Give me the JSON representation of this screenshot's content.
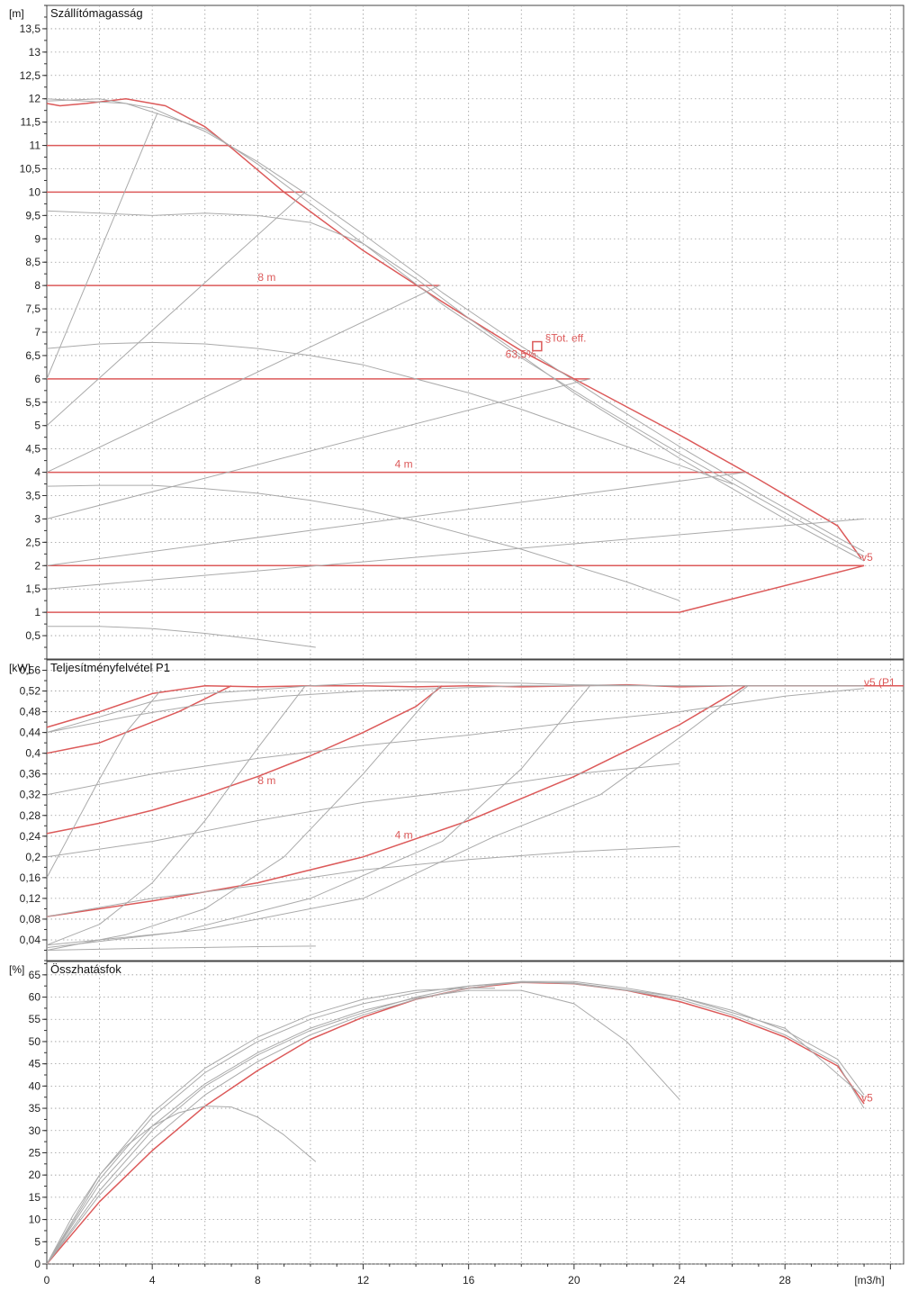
{
  "chart_data": [
    {
      "type": "line",
      "title": "Szállítómagasság",
      "unit": "[m]",
      "xlabel": "[m3/h]",
      "xlim": [
        0,
        32.5
      ],
      "ylim": [
        0,
        14
      ],
      "x_ticks": [
        0,
        4,
        8,
        12,
        16,
        20,
        24,
        28
      ],
      "y_ticks": [
        "0,5",
        "1",
        "1,5",
        "2",
        "2,5",
        "3",
        "3,5",
        "4",
        "4,5",
        "5",
        "5,5",
        "6",
        "6,5",
        "7",
        "7,5",
        "8",
        "8,5",
        "9",
        "9,5",
        "10",
        "10,5",
        "11",
        "11,5",
        "12",
        "12,5",
        "13",
        "13,5"
      ],
      "grid": true,
      "series": [
        {
          "name": "v5",
          "color": "#dc5a5a",
          "x": [
            0,
            0.5,
            1.5,
            3,
            4.5,
            6,
            7,
            9,
            12,
            15,
            18,
            21,
            24,
            27,
            30,
            30.9
          ],
          "y": [
            11.9,
            11.85,
            11.9,
            12,
            11.85,
            11.4,
            10.95,
            10.0,
            8.75,
            7.65,
            6.6,
            5.7,
            4.8,
            3.85,
            2.85,
            2.15
          ]
        },
        {
          "name": "",
          "color": "#dc5a5a",
          "x": [
            0,
            7
          ],
          "y": [
            11,
            11
          ]
        },
        {
          "name": "",
          "color": "#dc5a5a",
          "x": [
            0,
            9.8
          ],
          "y": [
            10,
            10
          ]
        },
        {
          "name": "",
          "color": "#dc5a5a",
          "x": [
            0,
            14.9
          ],
          "y": [
            8,
            8
          ]
        },
        {
          "name": "",
          "color": "#dc5a5a",
          "x": [
            0,
            20.6
          ],
          "y": [
            6,
            6
          ]
        },
        {
          "name": "",
          "color": "#dc5a5a",
          "x": [
            0,
            26.5
          ],
          "y": [
            4,
            4
          ]
        },
        {
          "name": "",
          "color": "#dc5a5a",
          "x": [
            0,
            31
          ],
          "y": [
            2,
            2
          ]
        },
        {
          "name": "",
          "color": "#dc5a5a",
          "x": [
            0,
            24,
            31
          ],
          "y": [
            1,
            1,
            2
          ]
        },
        {
          "name": "",
          "color": "#aaaaaa",
          "x": [
            0,
            2,
            4,
            6,
            8,
            10,
            12,
            15,
            18,
            21,
            24,
            27,
            30,
            31
          ],
          "y": [
            11.95,
            12,
            11.8,
            11.3,
            10.65,
            9.9,
            9.1,
            7.85,
            6.7,
            5.6,
            4.55,
            3.55,
            2.6,
            2.3
          ]
        },
        {
          "name": "",
          "color": "#aaaaaa",
          "x": [
            0,
            3,
            6,
            8,
            10,
            12,
            15,
            18,
            21,
            24,
            27,
            30,
            31
          ],
          "y": [
            12.0,
            11.9,
            11.35,
            10.6,
            9.75,
            8.9,
            7.6,
            6.45,
            5.4,
            4.4,
            3.45,
            2.5,
            2.2
          ]
        },
        {
          "name": "",
          "color": "#aaaaaa",
          "x": [
            0,
            2,
            4,
            6,
            8,
            10,
            12,
            14,
            16,
            18,
            20,
            22,
            24,
            26,
            28,
            30,
            31
          ],
          "y": [
            9.6,
            9.55,
            9.5,
            9.55,
            9.5,
            9.35,
            8.9,
            8.15,
            7.3,
            6.5,
            5.7,
            5.0,
            4.3,
            3.65,
            3.0,
            2.4,
            2.1
          ]
        },
        {
          "name": "",
          "color": "#aaaaaa",
          "x": [
            0,
            2,
            4,
            6,
            8,
            10,
            12,
            14,
            16,
            18,
            20,
            22,
            24,
            26
          ],
          "y": [
            6.65,
            6.75,
            6.78,
            6.75,
            6.65,
            6.5,
            6.3,
            6.0,
            5.7,
            5.35,
            4.95,
            4.55,
            4.15,
            3.75
          ]
        },
        {
          "name": "",
          "color": "#aaaaaa",
          "x": [
            0,
            2,
            4,
            6,
            8,
            10,
            12,
            14,
            16,
            18,
            20,
            22,
            24
          ],
          "y": [
            3.7,
            3.72,
            3.72,
            3.65,
            3.55,
            3.4,
            3.2,
            2.95,
            2.65,
            2.35,
            2.0,
            1.65,
            1.25
          ]
        },
        {
          "name": "",
          "color": "#aaaaaa",
          "x": [
            0,
            2,
            4,
            6,
            8,
            10.2
          ],
          "y": [
            0.7,
            0.7,
            0.65,
            0.55,
            0.42,
            0.25
          ]
        },
        {
          "name": "",
          "color": "#aaaaaa",
          "x": [
            0,
            4.2
          ],
          "y": [
            6,
            11.7
          ]
        },
        {
          "name": "",
          "color": "#aaaaaa",
          "x": [
            0,
            9.8
          ],
          "y": [
            5,
            10
          ]
        },
        {
          "name": "",
          "color": "#aaaaaa",
          "x": [
            0,
            14.9
          ],
          "y": [
            4,
            8
          ]
        },
        {
          "name": "",
          "color": "#aaaaaa",
          "x": [
            0,
            20.6
          ],
          "y": [
            3,
            6
          ]
        },
        {
          "name": "",
          "color": "#aaaaaa",
          "x": [
            0,
            26.5
          ],
          "y": [
            2,
            4
          ]
        },
        {
          "name": "",
          "color": "#aaaaaa",
          "x": [
            0,
            31
          ],
          "y": [
            1.5,
            3
          ]
        }
      ],
      "annotations": [
        {
          "text": "8 m",
          "x": 8.0,
          "y": 8.1
        },
        {
          "text": "4 m",
          "x": 13.2,
          "y": 4.1
        },
        {
          "text": "§Tot. eff.",
          "x": 18.9,
          "y": 6.8
        },
        {
          "text": "63,5%",
          "x": 17.4,
          "y": 6.45
        },
        {
          "text": "v5",
          "x": 30.9,
          "y": 2.1
        }
      ],
      "marker": {
        "x": 18.6,
        "y": 6.7
      }
    },
    {
      "type": "line",
      "title": "Teljesítményfelvétel P1",
      "unit": "[kW]",
      "xlim": [
        0,
        32.5
      ],
      "ylim": [
        0,
        0.58
      ],
      "y_ticks": [
        "0,04",
        "0,08",
        "0,12",
        "0,16",
        "0,2",
        "0,24",
        "0,28",
        "0,32",
        "0,36",
        "0,4",
        "0,44",
        "0,48",
        "0,52",
        "0,56"
      ],
      "grid": true,
      "series": [
        {
          "name": "v5 (P1",
          "color": "#dc5a5a",
          "x": [
            0,
            2,
            4,
            6,
            8,
            10,
            12,
            14,
            16,
            18,
            20,
            22,
            24,
            26,
            28,
            30,
            32.5
          ],
          "y": [
            0.45,
            0.48,
            0.515,
            0.53,
            0.528,
            0.53,
            0.53,
            0.528,
            0.53,
            0.528,
            0.53,
            0.532,
            0.528,
            0.53,
            0.53,
            0.53,
            0.53
          ]
        },
        {
          "name": "",
          "color": "#dc5a5a",
          "x": [
            0,
            1,
            2,
            3,
            4,
            5,
            6,
            7
          ],
          "y": [
            0.4,
            0.41,
            0.42,
            0.44,
            0.46,
            0.48,
            0.505,
            0.53
          ]
        },
        {
          "name": "",
          "color": "#dc5a5a",
          "x": [
            0,
            2,
            4,
            6,
            8,
            10,
            12,
            14,
            15
          ],
          "y": [
            0.245,
            0.265,
            0.29,
            0.32,
            0.355,
            0.395,
            0.44,
            0.49,
            0.53
          ]
        },
        {
          "name": "",
          "color": "#dc5a5a",
          "x": [
            0,
            4,
            8,
            12,
            16,
            20,
            22,
            24,
            26.5
          ],
          "y": [
            0.085,
            0.115,
            0.15,
            0.2,
            0.27,
            0.355,
            0.405,
            0.455,
            0.53
          ]
        },
        {
          "name": "",
          "color": "#aaaaaa",
          "x": [
            0,
            2,
            4,
            6,
            8,
            10,
            12,
            14,
            16,
            18,
            20,
            24,
            28,
            31
          ],
          "y": [
            0.44,
            0.47,
            0.5,
            0.515,
            0.522,
            0.53,
            0.535,
            0.538,
            0.536,
            0.535,
            0.532,
            0.53,
            0.53,
            0.53
          ]
        },
        {
          "name": "",
          "color": "#aaaaaa",
          "x": [
            0,
            1,
            2,
            3,
            4.3
          ],
          "y": [
            0.16,
            0.255,
            0.35,
            0.44,
            0.52
          ]
        },
        {
          "name": "",
          "color": "#aaaaaa",
          "x": [
            0,
            2,
            4,
            6,
            8,
            9.8
          ],
          "y": [
            0.03,
            0.07,
            0.15,
            0.27,
            0.41,
            0.53
          ]
        },
        {
          "name": "",
          "color": "#aaaaaa",
          "x": [
            0,
            3,
            6,
            9,
            12,
            14.9
          ],
          "y": [
            0.02,
            0.05,
            0.1,
            0.2,
            0.36,
            0.53
          ]
        },
        {
          "name": "",
          "color": "#aaaaaa",
          "x": [
            0,
            5,
            10,
            15,
            18,
            20.6
          ],
          "y": [
            0.025,
            0.055,
            0.12,
            0.23,
            0.37,
            0.53
          ]
        },
        {
          "name": "",
          "color": "#aaaaaa",
          "x": [
            0,
            6,
            12,
            17,
            21,
            24,
            26.6
          ],
          "y": [
            0.03,
            0.06,
            0.12,
            0.24,
            0.32,
            0.43,
            0.53
          ]
        },
        {
          "name": "",
          "color": "#aaaaaa",
          "x": [
            0,
            4,
            8,
            12,
            16,
            20,
            24,
            28,
            31
          ],
          "y": [
            0.32,
            0.36,
            0.39,
            0.415,
            0.435,
            0.46,
            0.48,
            0.51,
            0.525
          ]
        },
        {
          "name": "",
          "color": "#aaaaaa",
          "x": [
            0,
            4,
            8,
            12,
            16,
            20,
            24
          ],
          "y": [
            0.2,
            0.23,
            0.27,
            0.305,
            0.33,
            0.36,
            0.38
          ]
        },
        {
          "name": "",
          "color": "#aaaaaa",
          "x": [
            0,
            4,
            8,
            12,
            16,
            20,
            24
          ],
          "y": [
            0.085,
            0.12,
            0.145,
            0.175,
            0.195,
            0.21,
            0.22
          ]
        },
        {
          "name": "",
          "color": "#aaaaaa",
          "x": [
            0,
            4,
            8,
            10.2
          ],
          "y": [
            0.02,
            0.024,
            0.027,
            0.028
          ]
        },
        {
          "name": "",
          "color": "#aaaaaa",
          "x": [
            0,
            3,
            6,
            9,
            12,
            15,
            18,
            21,
            24,
            27,
            31
          ],
          "y": [
            0.44,
            0.47,
            0.495,
            0.51,
            0.52,
            0.525,
            0.53,
            0.53,
            0.53,
            0.53,
            0.53
          ]
        }
      ],
      "annotations": [
        {
          "text": "8 m",
          "x": 8.0,
          "y": 0.34
        },
        {
          "text": "4 m",
          "x": 13.2,
          "y": 0.235
        },
        {
          "text": "v5 (P1",
          "x": 31.0,
          "y": 0.53
        }
      ]
    },
    {
      "type": "line",
      "title": "Összhatásfok",
      "unit": "[%]",
      "xlabel": "[m3/h]",
      "xlim": [
        0,
        32.5
      ],
      "ylim": [
        0,
        68
      ],
      "x_ticks": [
        0,
        4,
        8,
        12,
        16,
        20,
        24,
        28
      ],
      "y_ticks": [
        "0",
        "5",
        "10",
        "15",
        "20",
        "25",
        "30",
        "35",
        "40",
        "45",
        "50",
        "55",
        "60",
        "65"
      ],
      "grid": true,
      "series": [
        {
          "name": "v5",
          "color": "#dc5a5a",
          "x": [
            0,
            2,
            4,
            6,
            8,
            10,
            12,
            14,
            16,
            18,
            20,
            22,
            24,
            26,
            28,
            30,
            31
          ],
          "y": [
            0,
            14,
            25.5,
            35.5,
            43.5,
            50.5,
            55.5,
            59.5,
            62.0,
            63.3,
            63.0,
            61.5,
            59.0,
            55.5,
            51.0,
            44.5,
            36
          ]
        },
        {
          "name": "",
          "color": "#aaaaaa",
          "x": [
            0,
            2,
            4,
            6,
            8,
            10,
            12,
            14,
            16,
            18,
            20,
            24,
            28,
            31
          ],
          "y": [
            0,
            19,
            33,
            43,
            50,
            55,
            58.5,
            61,
            62.5,
            63.3,
            63.2,
            60,
            53,
            37.5
          ]
        },
        {
          "name": "",
          "color": "#aaaaaa",
          "x": [
            0,
            2,
            4,
            6,
            8,
            10,
            12,
            14,
            16,
            18,
            20,
            22,
            24,
            26,
            28,
            30,
            31
          ],
          "y": [
            0,
            15.5,
            28,
            38,
            45.5,
            51.5,
            56,
            59.5,
            62,
            63.5,
            63,
            61.5,
            59.5,
            56,
            51.5,
            45,
            35
          ]
        },
        {
          "name": "",
          "color": "#aaaaaa",
          "x": [
            0,
            2,
            4,
            6,
            8,
            10,
            12,
            14,
            16,
            18,
            20,
            22,
            24,
            26,
            28,
            30,
            31
          ],
          "y": [
            0,
            16.5,
            30,
            40,
            47,
            52.5,
            56.5,
            60,
            62.5,
            63.5,
            63.5,
            62,
            60,
            57,
            52.5,
            46,
            38
          ]
        },
        {
          "name": "",
          "color": "#aaaaaa",
          "x": [
            0,
            2,
            4,
            6,
            8,
            10,
            12,
            14,
            16,
            17
          ],
          "y": [
            0,
            20,
            34,
            44,
            51,
            56,
            59.5,
            61.5,
            62,
            62
          ]
        },
        {
          "name": "",
          "color": "#aaaaaa",
          "x": [
            0,
            2,
            4,
            6,
            8,
            10,
            12,
            14,
            16,
            18,
            20,
            22,
            24
          ],
          "y": [
            0,
            18,
            31,
            40.5,
            47.5,
            53,
            57,
            59.8,
            61.5,
            61.5,
            58.5,
            50,
            37
          ]
        },
        {
          "name": "",
          "color": "#aaaaaa",
          "x": [
            0,
            1,
            2,
            3,
            4,
            5,
            6,
            7,
            8,
            9,
            10.2
          ],
          "y": [
            0,
            11,
            20,
            26.5,
            31,
            34,
            35.5,
            35.3,
            33,
            29,
            23
          ]
        }
      ],
      "annotations": [
        {
          "text": "v5",
          "x": 30.9,
          "y": 36.5
        }
      ]
    }
  ]
}
